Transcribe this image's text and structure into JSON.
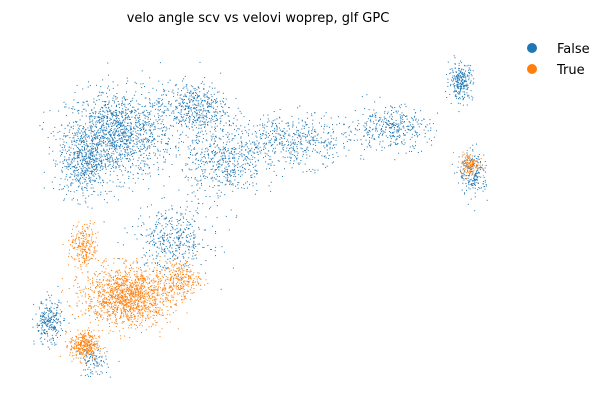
{
  "chart_data": {
    "type": "scatter",
    "title": "velo angle scv vs velovi woprep, glf GPC",
    "xlabel": "",
    "ylabel": "",
    "axes_visible": false,
    "grid": false,
    "legend_position": "top-right, outside plot",
    "x_range": [
      0,
      1
    ],
    "y_range": [
      0,
      1
    ],
    "series": [
      {
        "name": "False",
        "color": "#1f77b4",
        "clusters": [
          {
            "center": [
              0.18,
              0.74
            ],
            "spread": [
              0.11,
              0.12
            ],
            "weight": 0.26
          },
          {
            "center": [
              0.1,
              0.66
            ],
            "spread": [
              0.05,
              0.1
            ],
            "weight": 0.1
          },
          {
            "center": [
              0.35,
              0.82
            ],
            "spread": [
              0.07,
              0.07
            ],
            "weight": 0.09
          },
          {
            "center": [
              0.42,
              0.66
            ],
            "spread": [
              0.08,
              0.1
            ],
            "weight": 0.1
          },
          {
            "center": [
              0.3,
              0.42
            ],
            "spread": [
              0.08,
              0.09
            ],
            "weight": 0.08
          },
          {
            "center": [
              0.58,
              0.72
            ],
            "spread": [
              0.12,
              0.07
            ],
            "weight": 0.1
          },
          {
            "center": [
              0.8,
              0.76
            ],
            "spread": [
              0.08,
              0.06
            ],
            "weight": 0.07
          },
          {
            "center": [
              0.96,
              0.9
            ],
            "spread": [
              0.025,
              0.05
            ],
            "weight": 0.05
          },
          {
            "center": [
              0.99,
              0.62
            ],
            "spread": [
              0.03,
              0.06
            ],
            "weight": 0.04
          },
          {
            "center": [
              0.02,
              0.17
            ],
            "spread": [
              0.03,
              0.06
            ],
            "weight": 0.05
          },
          {
            "center": [
              0.12,
              0.05
            ],
            "spread": [
              0.03,
              0.04
            ],
            "weight": 0.02
          }
        ]
      },
      {
        "name": "True",
        "color": "#ff7f0e",
        "clusters": [
          {
            "center": [
              0.2,
              0.25
            ],
            "spread": [
              0.09,
              0.08
            ],
            "weight": 0.6
          },
          {
            "center": [
              0.1,
              0.4
            ],
            "spread": [
              0.03,
              0.06
            ],
            "weight": 0.1
          },
          {
            "center": [
              0.1,
              0.1
            ],
            "spread": [
              0.03,
              0.04
            ],
            "weight": 0.14
          },
          {
            "center": [
              0.98,
              0.65
            ],
            "spread": [
              0.02,
              0.03
            ],
            "weight": 0.06
          },
          {
            "center": [
              0.32,
              0.3
            ],
            "spread": [
              0.04,
              0.05
            ],
            "weight": 0.1
          }
        ]
      }
    ],
    "legend": {
      "items": [
        {
          "label": "False",
          "color": "#1f77b4"
        },
        {
          "label": "True",
          "color": "#ff7f0e"
        }
      ]
    }
  }
}
